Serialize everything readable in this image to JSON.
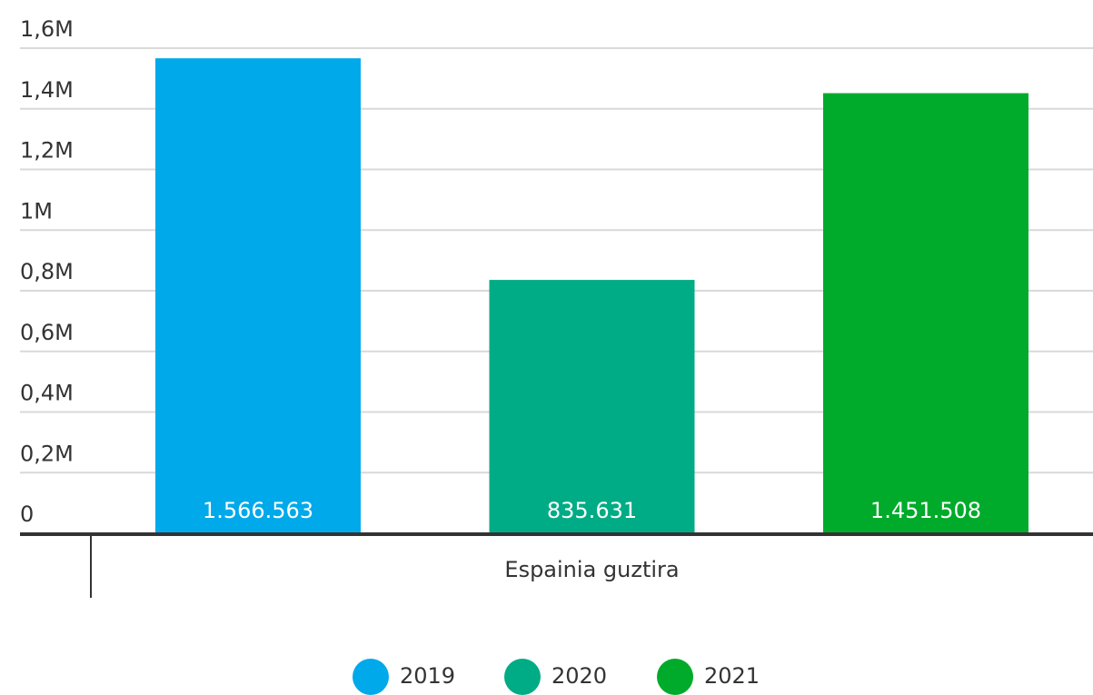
{
  "chart_data": {
    "type": "bar",
    "categories": [
      "Espainia guztira"
    ],
    "series": [
      {
        "name": "2019",
        "color": "#00a9ea",
        "values": [
          1566563
        ],
        "value_labels": [
          "1.566.563"
        ]
      },
      {
        "name": "2020",
        "color": "#00ac85",
        "values": [
          835631
        ],
        "value_labels": [
          "835.631"
        ]
      },
      {
        "name": "2021",
        "color": "#00ab2b",
        "values": [
          1451508
        ],
        "value_labels": [
          "1.451.508"
        ]
      }
    ],
    "ylim": [
      0,
      1600000
    ],
    "yticks": [
      0,
      {
        "value": 200000,
        "label": "0,2M"
      },
      {
        "value": 400000,
        "label": "0,4M"
      },
      {
        "value": 600000,
        "label": "0,6M"
      },
      {
        "value": 800000,
        "label": "0,8M"
      },
      {
        "value": 1000000,
        "label": "1M"
      },
      {
        "value": 1200000,
        "label": "1,2M"
      },
      {
        "value": 1400000,
        "label": "1,4M"
      },
      {
        "value": 1600000,
        "label": "1,6M"
      }
    ],
    "grid": true
  }
}
